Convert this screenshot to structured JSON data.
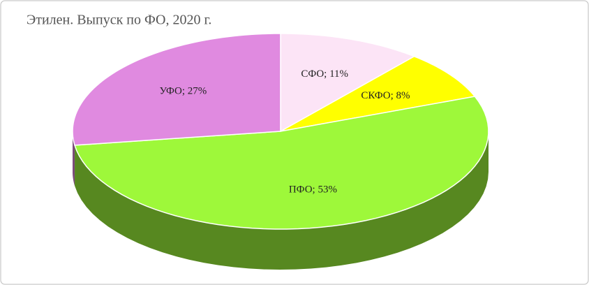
{
  "chart_data": {
    "type": "pie",
    "title": "Этилен. Выпуск по ФО,  2020 г.",
    "values": [
      11,
      8,
      53,
      27
    ],
    "value_labels": [
      "СФО; 11%",
      "СКФО; 8%",
      "ПФО; 53%",
      "УФО; 27%"
    ],
    "colors": [
      "#fce4f6",
      "#ffff00",
      "#9ef83a",
      "#e08ae0"
    ]
  }
}
